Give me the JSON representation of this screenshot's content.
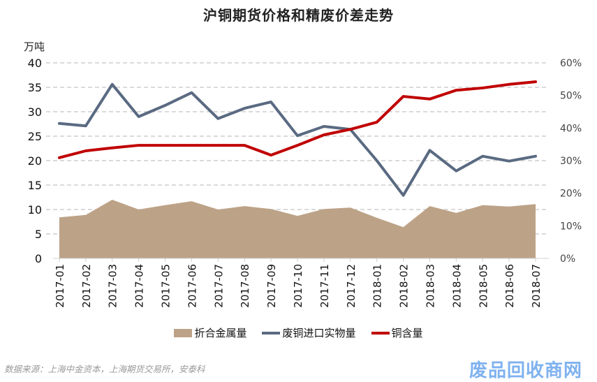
{
  "chart_data": {
    "type": "area+line",
    "title": "沪铜期货价格和精废价差走势",
    "ylabel_left": "万吨",
    "ylim_left": [
      0,
      40
    ],
    "yticks_left": [
      "0",
      "5",
      "10",
      "15",
      "20",
      "25",
      "30",
      "35",
      "40"
    ],
    "ylim_right": [
      0,
      60
    ],
    "yticks_right": [
      "0%",
      "10%",
      "20%",
      "30%",
      "40%",
      "50%",
      "60%"
    ],
    "grid": true,
    "legend_position": "bottom",
    "categories": [
      "2017-01",
      "2017-02",
      "2017-03",
      "2017-04",
      "2017-05",
      "2017-06",
      "2017-07",
      "2017-08",
      "2017-09",
      "2017-10",
      "2017-11",
      "2017-12",
      "2018-01",
      "2018-02",
      "2018-03",
      "2018-04",
      "2018-05",
      "2018-06",
      "2018-07"
    ],
    "series": [
      {
        "name": "折合金属量",
        "type": "area",
        "axis": "left",
        "color": "#bca287",
        "values": [
          8.4,
          8.9,
          12.0,
          10.0,
          10.9,
          11.7,
          10.0,
          10.7,
          10.1,
          8.7,
          10.1,
          10.4,
          8.3,
          6.4,
          10.7,
          9.3,
          10.9,
          10.6,
          11.1
        ]
      },
      {
        "name": "废铜进口实物量",
        "type": "line",
        "axis": "left",
        "color": "#5a6a82",
        "values": [
          27.6,
          27.1,
          35.6,
          29.0,
          31.3,
          33.9,
          28.6,
          30.7,
          32.0,
          25.1,
          27.0,
          26.4,
          20.0,
          12.9,
          22.1,
          17.9,
          20.9,
          19.9,
          20.9
        ]
      },
      {
        "name": "铜含量",
        "type": "line",
        "axis": "right",
        "color": "#c00000",
        "values": [
          30.9,
          33.0,
          33.9,
          34.7,
          34.7,
          34.7,
          34.7,
          34.7,
          31.7,
          34.7,
          37.9,
          39.6,
          41.8,
          49.7,
          48.9,
          51.6,
          52.3,
          53.4,
          54.2
        ]
      }
    ]
  },
  "source": "数据来源：上海中金资本，上海期货交易所，安泰科",
  "watermark": "废品回收商网"
}
